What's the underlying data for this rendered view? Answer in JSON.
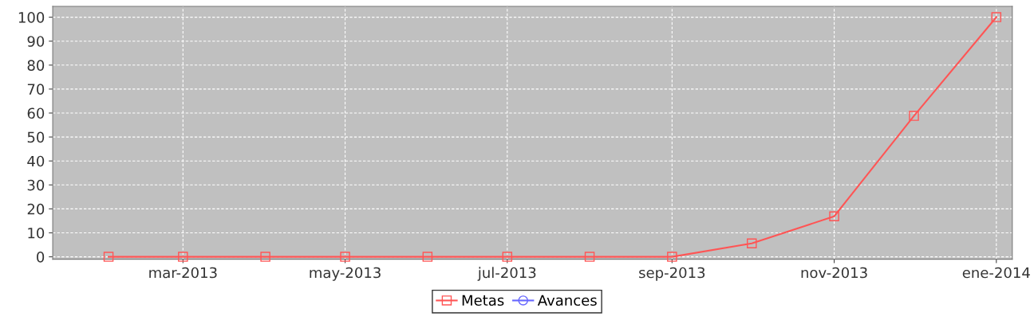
{
  "chart_data": {
    "type": "line",
    "x": [
      "2013-02-01",
      "2013-03-01",
      "2013-04-01",
      "2013-05-01",
      "2013-06-01",
      "2013-07-01",
      "2013-08-01",
      "2013-09-01",
      "2013-10-01",
      "2013-11-01",
      "2013-12-01",
      "2014-01-01"
    ],
    "series": [
      {
        "name": "Metas",
        "color": "#ff5555",
        "marker": "square",
        "values": [
          0,
          0,
          0,
          0,
          0,
          0,
          0,
          0,
          5.6,
          16.9,
          58.8,
          100
        ]
      },
      {
        "name": "Avances",
        "color": "#6666ff",
        "marker": "circle",
        "values": [
          null,
          null,
          null,
          null,
          null,
          null,
          null,
          null,
          null,
          null,
          null,
          null
        ]
      }
    ],
    "xlim": [
      "2013-01-11",
      "2014-01-07"
    ],
    "xticks": [
      {
        "value": "2013-03-01",
        "label": "mar-2013"
      },
      {
        "value": "2013-05-01",
        "label": "may-2013"
      },
      {
        "value": "2013-07-01",
        "label": "jul-2013"
      },
      {
        "value": "2013-09-01",
        "label": "sep-2013"
      },
      {
        "value": "2013-11-01",
        "label": "nov-2013"
      },
      {
        "value": "2014-01-01",
        "label": "ene-2014"
      }
    ],
    "ylim": [
      -1,
      104.5
    ],
    "yticks": [
      0,
      10,
      20,
      30,
      40,
      50,
      60,
      70,
      80,
      90,
      100
    ],
    "grid": true,
    "legend": "bottom",
    "line_style": "solid"
  }
}
